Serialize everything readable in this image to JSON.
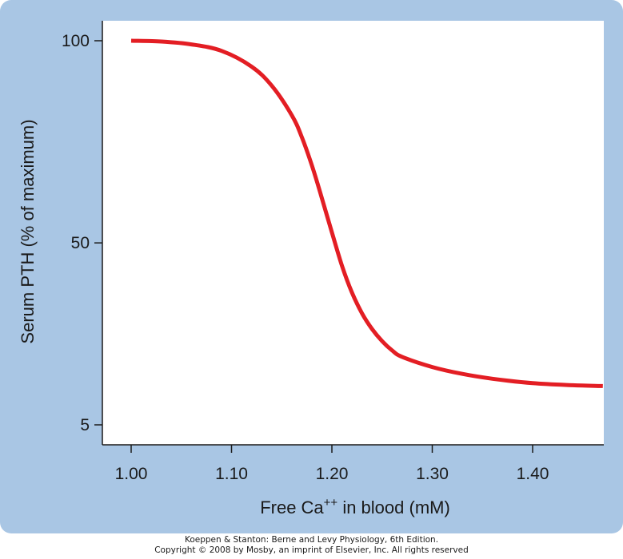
{
  "chart_data": {
    "type": "line",
    "title": "",
    "xlabel": "Free Ca++ in blood (mM)",
    "xlabel_parts": {
      "before": "Free Ca",
      "superscript": "++",
      "after": " in blood (mM)"
    },
    "ylabel": "Serum PTH (% of maximum)",
    "xlim": [
      0.97,
      1.47
    ],
    "ylim": [
      5,
      100
    ],
    "y_ticks": [
      {
        "label": "100",
        "value": 100
      },
      {
        "label": "50",
        "value": 50
      },
      {
        "label": "5",
        "value": 5
      }
    ],
    "x_ticks": [
      {
        "label": "1.00",
        "value": 1.0
      },
      {
        "label": "1.10",
        "value": 1.1
      },
      {
        "label": "1.20",
        "value": 1.2
      },
      {
        "label": "1.30",
        "value": 1.3
      },
      {
        "label": "1.40",
        "value": 1.4
      }
    ],
    "grid": false,
    "series": [
      {
        "color": "#e31e24",
        "x": [
          1.0,
          1.03,
          1.06,
          1.09,
          1.12,
          1.14,
          1.16,
          1.17,
          1.18,
          1.19,
          1.2,
          1.21,
          1.22,
          1.23,
          1.24,
          1.25,
          1.26,
          1.27,
          1.3,
          1.33,
          1.36,
          1.4,
          1.44,
          1.47
        ],
        "y": [
          100,
          99.8,
          99.1,
          97.5,
          93.6,
          88.9,
          81.6,
          76.2,
          69.2,
          61.1,
          52.6,
          44.4,
          37.7,
          32.6,
          28.7,
          25.7,
          23.4,
          21.8,
          19.3,
          17.6,
          16.4,
          15.3,
          14.8,
          14.6
        ]
      }
    ]
  },
  "credit": {
    "line1": "Koeppen & Stanton: Berne and Levy Physiology, 6th Edition.",
    "line2": "Copyright © 2008 by Mosby, an imprint of Elsevier, Inc. All rights reserved"
  }
}
